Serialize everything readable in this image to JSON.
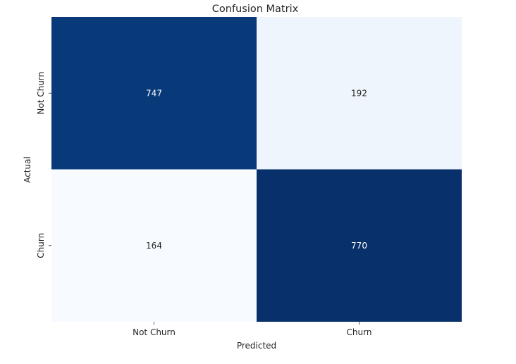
{
  "chart_data": {
    "type": "heatmap",
    "title": "Confusion Matrix",
    "xlabel": "Predicted",
    "ylabel": "Actual",
    "x_categories": [
      "Not Churn",
      "Churn"
    ],
    "y_categories": [
      "Not Churn",
      "Churn"
    ],
    "values": [
      [
        747,
        192
      ],
      [
        164,
        770
      ]
    ],
    "colormap": "Blues",
    "colors": {
      "low": "#f7fbff",
      "low_mid": "#edf4fc",
      "high": "#08306b",
      "high_mid": "#083776",
      "text_on_dark": "#ffffff",
      "text_on_light": "#262626"
    },
    "colorbar": false
  }
}
